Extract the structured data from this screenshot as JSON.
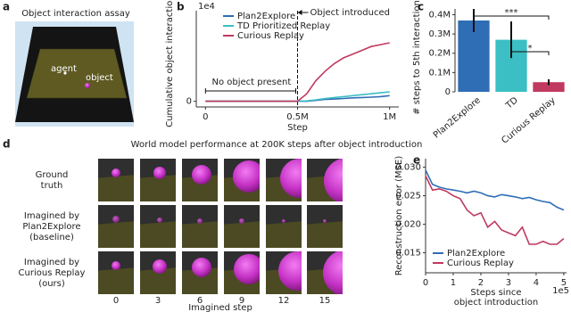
{
  "panel_labels": [
    "a",
    "b",
    "c",
    "d",
    "e"
  ],
  "assay": {
    "title": "Object interaction assay",
    "agent_label": "agent",
    "object_label": "object"
  },
  "chart_data": [
    {
      "type": "line",
      "y_label": "Cumulative object interactions",
      "x_label": "Step",
      "y_offset_label": "1e4",
      "x": [
        0,
        250000,
        500000,
        550000,
        600000,
        650000,
        700000,
        750000,
        800000,
        850000,
        900000,
        950000,
        1000000
      ],
      "xlim": [
        -50000,
        1050000
      ],
      "xticks": [
        0,
        {
          "value": 500000,
          "label": "0.5M"
        },
        {
          "value": 1000000,
          "label": "1M"
        }
      ],
      "ylim": [
        -0.3,
        4.8
      ],
      "yticks": [
        0
      ],
      "legend": "upper left",
      "event_label": "Object introduced",
      "event_x": 500000,
      "baseline_note": "No object present",
      "series": [
        {
          "name": "Plan2Explore",
          "color": "#2f6db5",
          "values": [
            0,
            0,
            0,
            0,
            0.05,
            0.1,
            0.12,
            0.15,
            0.18,
            0.2,
            0.22,
            0.25,
            0.3
          ]
        },
        {
          "name": "TD Prioritized Replay",
          "color": "#3bbfc4",
          "values": [
            0,
            0,
            0,
            0.02,
            0.08,
            0.15,
            0.2,
            0.25,
            0.3,
            0.35,
            0.4,
            0.45,
            0.5
          ]
        },
        {
          "name": "Curious Replay",
          "color": "#c0395f",
          "values": [
            0,
            0,
            0,
            0.4,
            1.1,
            1.6,
            2.0,
            2.3,
            2.5,
            2.7,
            2.9,
            3.0,
            3.1
          ]
        }
      ]
    },
    {
      "type": "bar",
      "y_label": "# steps to 5th interaction",
      "categories": [
        "Plan2Explore",
        "TD",
        "Curious Replay"
      ],
      "values": [
        370000,
        270000,
        50000
      ],
      "errors": [
        60000,
        95000,
        15000
      ],
      "colors": [
        "#2f6db5",
        "#3bbfc4",
        "#c0395f"
      ],
      "ylim": [
        0,
        430000
      ],
      "yticks": [
        0,
        {
          "value": 100000,
          "label": "0.1M"
        },
        {
          "value": 200000,
          "label": "0.2M"
        },
        {
          "value": 300000,
          "label": "0.3M"
        },
        {
          "value": 400000,
          "label": "0.4M"
        }
      ],
      "significance": [
        {
          "label": "***",
          "between": [
            0,
            2
          ]
        },
        {
          "label": "*",
          "between": [
            1,
            2
          ]
        }
      ]
    },
    {
      "type": "line",
      "y_label": "Reconstruction error (MSE)",
      "x_label": [
        "Steps since",
        "object introduction"
      ],
      "x_offset_label": "1e5",
      "x": [
        0,
        0.25,
        0.5,
        0.75,
        1,
        1.25,
        1.5,
        1.75,
        2,
        2.25,
        2.5,
        2.75,
        3,
        3.25,
        3.5,
        3.75,
        4,
        4.25,
        4.5,
        4.75,
        5
      ],
      "xlim": [
        0,
        5.1
      ],
      "xticks": [
        0,
        1,
        2,
        3,
        4,
        5
      ],
      "ylim": [
        0.0115,
        0.0315
      ],
      "yticks": [
        0.015,
        {
          "value": 0.02,
          "label": "0.020"
        },
        0.025,
        {
          "value": 0.03,
          "label": "0.030"
        }
      ],
      "legend": "lower left",
      "series": [
        {
          "name": "Plan2Explore",
          "color": "#2f6db5",
          "values": [
            0.0295,
            0.027,
            0.0265,
            0.0262,
            0.026,
            0.0258,
            0.0255,
            0.0258,
            0.0255,
            0.025,
            0.0248,
            0.0252,
            0.025,
            0.0248,
            0.0245,
            0.0247,
            0.0243,
            0.024,
            0.0238,
            0.023,
            0.0225
          ]
        },
        {
          "name": "Curious Replay",
          "color": "#c0395f",
          "values": [
            0.0285,
            0.026,
            0.0262,
            0.0258,
            0.025,
            0.0245,
            0.0225,
            0.0215,
            0.022,
            0.0195,
            0.0205,
            0.019,
            0.0185,
            0.018,
            0.0195,
            0.0165,
            0.0165,
            0.017,
            0.0165,
            0.0165,
            0.0175
          ]
        }
      ]
    }
  ],
  "imagination": {
    "title": "World model performance at 200K steps after object introduction",
    "row_labels": [
      [
        "Ground",
        "truth"
      ],
      [
        "Imagined by",
        "Plan2Explore",
        "(baseline)"
      ],
      [
        "Imagined by",
        "Curious Replay",
        "(ours)"
      ]
    ],
    "column_labels": [
      0,
      3,
      6,
      9,
      12,
      15
    ],
    "x_label": "Imagined step"
  }
}
